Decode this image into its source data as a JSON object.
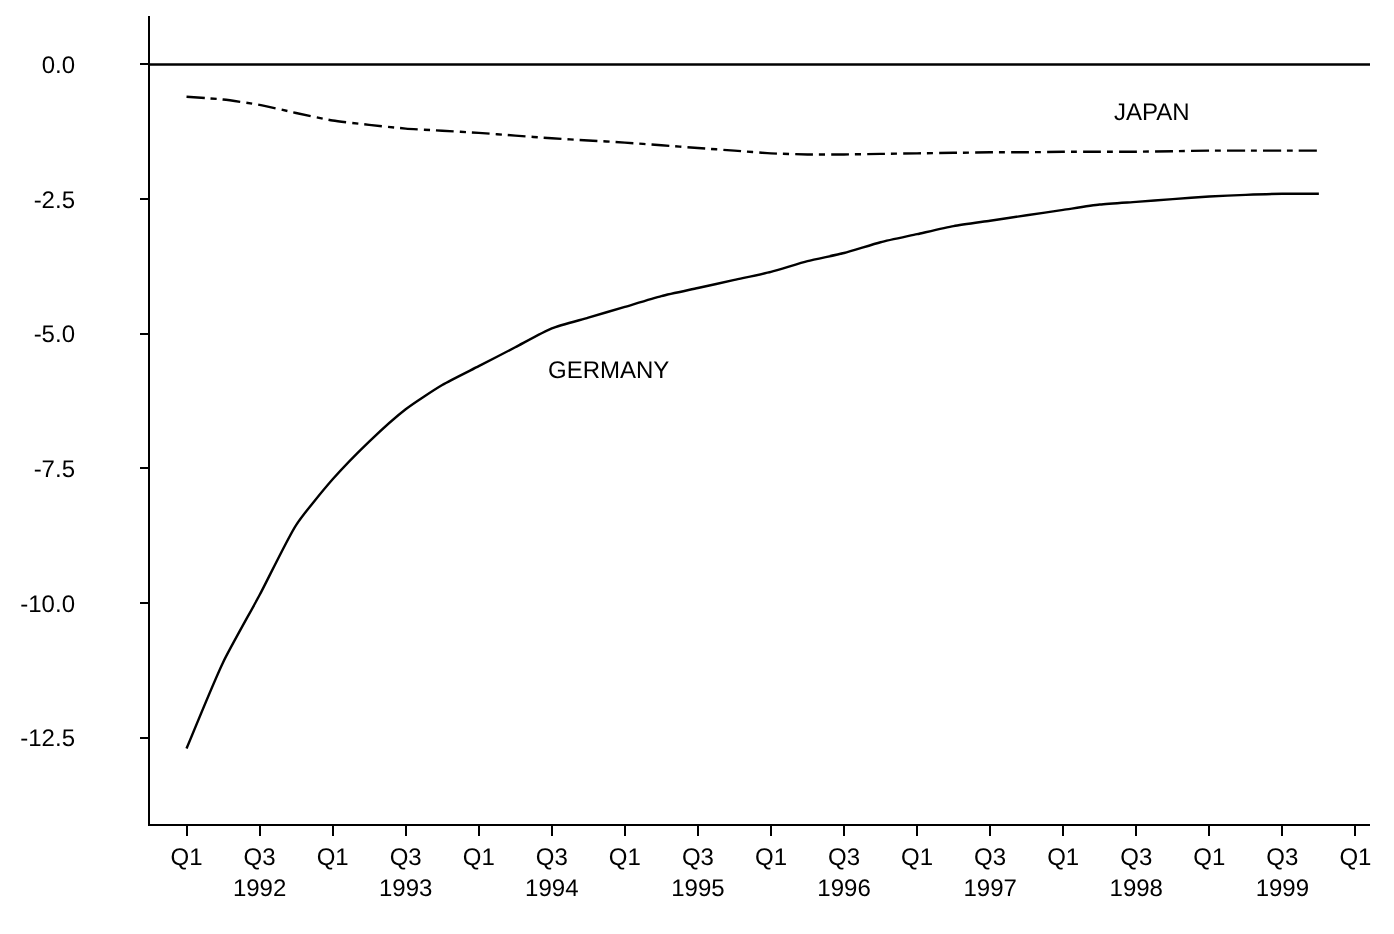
{
  "chart_data": {
    "type": "line",
    "categories": [
      "Q1",
      null,
      "Q3\n1992",
      null,
      "Q1",
      null,
      "Q3\n1993",
      null,
      "Q1",
      null,
      "Q3\n1994",
      null,
      "Q1",
      null,
      "Q3\n1995",
      null,
      "Q1",
      null,
      "Q3\n1996",
      null,
      "Q1",
      null,
      "Q3\n1997",
      null,
      "Q1",
      null,
      "Q3\n1998",
      null,
      "Q1",
      null,
      "Q3\n1999",
      null,
      "Q1"
    ],
    "series": [
      {
        "name": "GERMANY",
        "color": "#000000",
        "line_style": "solid",
        "values": [
          -12.7,
          -11.1,
          -9.85,
          -8.55,
          -7.7,
          -7.0,
          -6.4,
          -5.95,
          -5.6,
          -5.25,
          -4.9,
          -4.7,
          -4.5,
          -4.3,
          -4.15,
          -4.0,
          -3.85,
          -3.65,
          -3.5,
          -3.3,
          -3.15,
          -3.0,
          -2.9,
          -2.8,
          -2.7,
          -2.6,
          -2.55,
          -2.5,
          -2.45,
          -2.42,
          -2.4,
          -2.4,
          null
        ]
      },
      {
        "name": "JAPAN",
        "color": "#000000",
        "line_style": "dashed",
        "values": [
          -0.6,
          -0.65,
          -0.75,
          -0.9,
          -1.04,
          -1.12,
          -1.19,
          -1.23,
          -1.27,
          -1.32,
          -1.37,
          -1.41,
          -1.45,
          -1.5,
          -1.55,
          -1.6,
          -1.65,
          -1.67,
          -1.67,
          -1.66,
          -1.65,
          -1.64,
          -1.63,
          -1.63,
          -1.62,
          -1.62,
          -1.62,
          -1.61,
          -1.6,
          -1.6,
          -1.6,
          -1.6,
          null
        ]
      }
    ],
    "ylim": [
      -14.1,
      0.9
    ],
    "yticks": [
      {
        "value": 0,
        "label": "0.0"
      },
      {
        "value": -2.5,
        "label": "-2.5"
      },
      {
        "value": -5,
        "label": "-5.0"
      },
      {
        "value": -7.5,
        "label": "-7.5"
      },
      {
        "value": -10,
        "label": "-10.0"
      },
      {
        "value": -12.5,
        "label": "-12.5"
      }
    ],
    "ref_lines": [
      {
        "axis": "y",
        "value": 0,
        "color": "#000000",
        "line_style": "solid"
      }
    ],
    "grid": false,
    "legend": false,
    "marker": "none"
  }
}
